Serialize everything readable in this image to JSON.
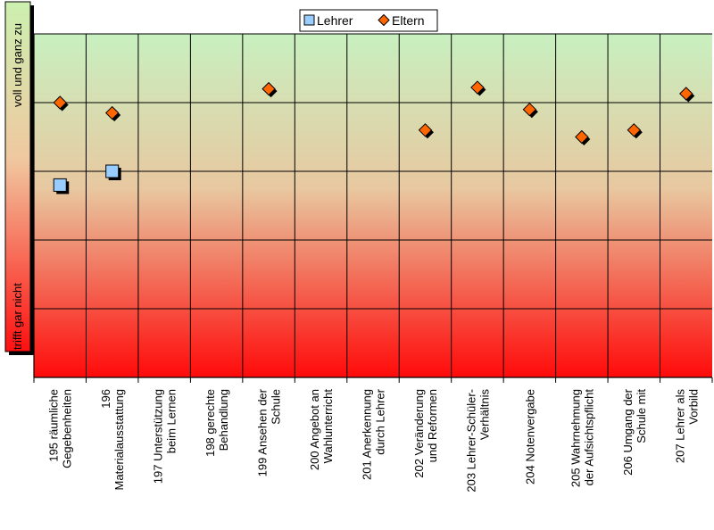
{
  "chart_data": {
    "type": "scatter",
    "title": "",
    "xlabel": "",
    "ylabel": "",
    "ylim": [
      1,
      6
    ],
    "grid": true,
    "legend_placement": "top",
    "scale_labels": {
      "top": "voll und ganz zu",
      "bottom": "trifft gar nicht"
    },
    "categories": [
      [
        "195 räumliche",
        "Gegebenheiten"
      ],
      [
        "196",
        "Materialausstattung"
      ],
      [
        "197 Unterstützung",
        "beim Lernen"
      ],
      [
        "198 gerechte",
        "Behandlung"
      ],
      [
        "199 Ansehen der",
        "Schule"
      ],
      [
        "200 Angebot an",
        "Wahlunterricht"
      ],
      [
        "201 Anerkennung",
        "durch Lehrer"
      ],
      [
        "202 Veränderung",
        "und Reformen"
      ],
      [
        "203 Lehrer-Schüler-",
        "Verhältnis"
      ],
      [
        "204 Notenvergabe"
      ],
      [
        "205 Wahrnehmung",
        "der Aufsichtspflicht"
      ],
      [
        "206 Umgang der",
        "Schule mit"
      ],
      [
        "207 Lehrer als",
        "Vorbild"
      ]
    ],
    "series": [
      {
        "name": "Lehrer",
        "marker": "square",
        "color": "#99ccff",
        "values": [
          3.8,
          4.0,
          null,
          null,
          null,
          null,
          null,
          null,
          null,
          null,
          null,
          null,
          null
        ]
      },
      {
        "name": "Eltern",
        "marker": "diamond",
        "color": "#ff6600",
        "values": [
          5.0,
          4.85,
          null,
          null,
          5.2,
          null,
          null,
          4.6,
          5.22,
          4.9,
          4.5,
          4.6,
          5.13
        ]
      }
    ],
    "background_gradient": [
      "#c8f0c0",
      "#ff0a0a"
    ]
  }
}
